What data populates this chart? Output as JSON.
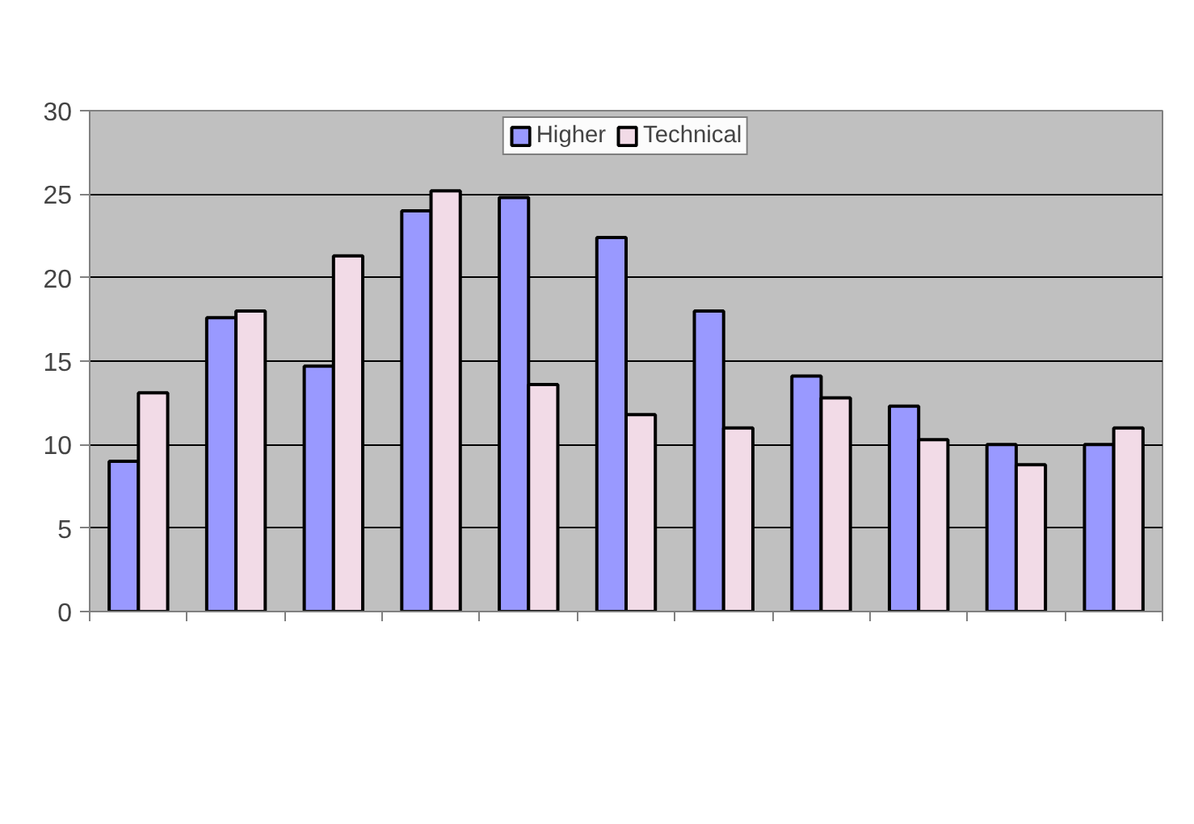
{
  "chart_data": {
    "type": "bar",
    "categories": [
      null,
      null,
      null,
      null,
      null,
      null,
      null,
      null,
      null,
      null,
      null
    ],
    "series": [
      {
        "name": "Higher",
        "color": "#9999ff",
        "values": [
          9.0,
          17.6,
          14.7,
          24.0,
          24.8,
          22.4,
          18.0,
          14.1,
          12.3,
          10.0,
          10.0
        ]
      },
      {
        "name": "Technical",
        "color": "#f2dbe7",
        "values": [
          13.1,
          18.0,
          21.3,
          25.2,
          13.6,
          11.8,
          11.0,
          12.8,
          10.3,
          8.8,
          11.0
        ]
      }
    ],
    "ylim": [
      0,
      30
    ],
    "yticks": [
      0,
      5,
      10,
      15,
      20,
      25,
      30
    ],
    "grid": "y",
    "legend": "top",
    "tick_labels": "y"
  }
}
